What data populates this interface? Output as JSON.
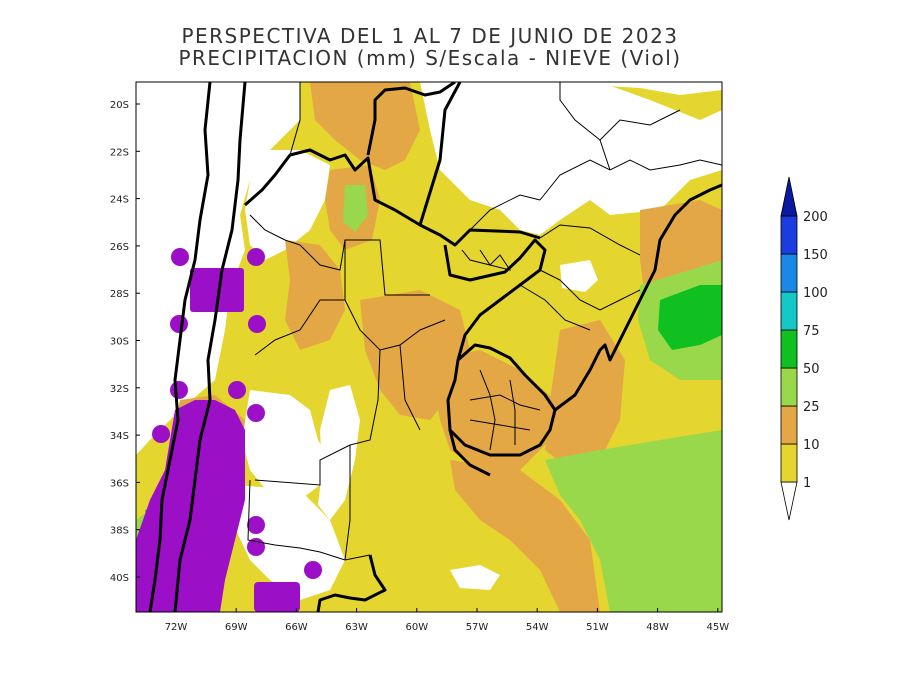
{
  "title_line1": "PERSPECTIVA DEL 1 AL 7 DE JUNIO DE 2023",
  "title_line2": "PRECIPITACION (mm) S/Escala - NIEVE (Viol)",
  "lat_ticks": [
    "20S",
    "22S",
    "24S",
    "26S",
    "28S",
    "30S",
    "32S",
    "34S",
    "36S",
    "38S",
    "40S"
  ],
  "lon_ticks": [
    "72W",
    "69W",
    "66W",
    "63W",
    "60W",
    "57W",
    "54W",
    "51W",
    "48W",
    "45W"
  ],
  "colorbar": {
    "labels": [
      "1",
      "10",
      "25",
      "50",
      "75",
      "100",
      "150",
      "200"
    ],
    "colors": [
      "#ffffff",
      "#e5d52f",
      "#e3a845",
      "#99d84a",
      "#10c020",
      "#14c8c8",
      "#1a88e6",
      "#1a3ce0",
      "#0a1aa0"
    ]
  },
  "snow_color": "#9b0fc7"
}
